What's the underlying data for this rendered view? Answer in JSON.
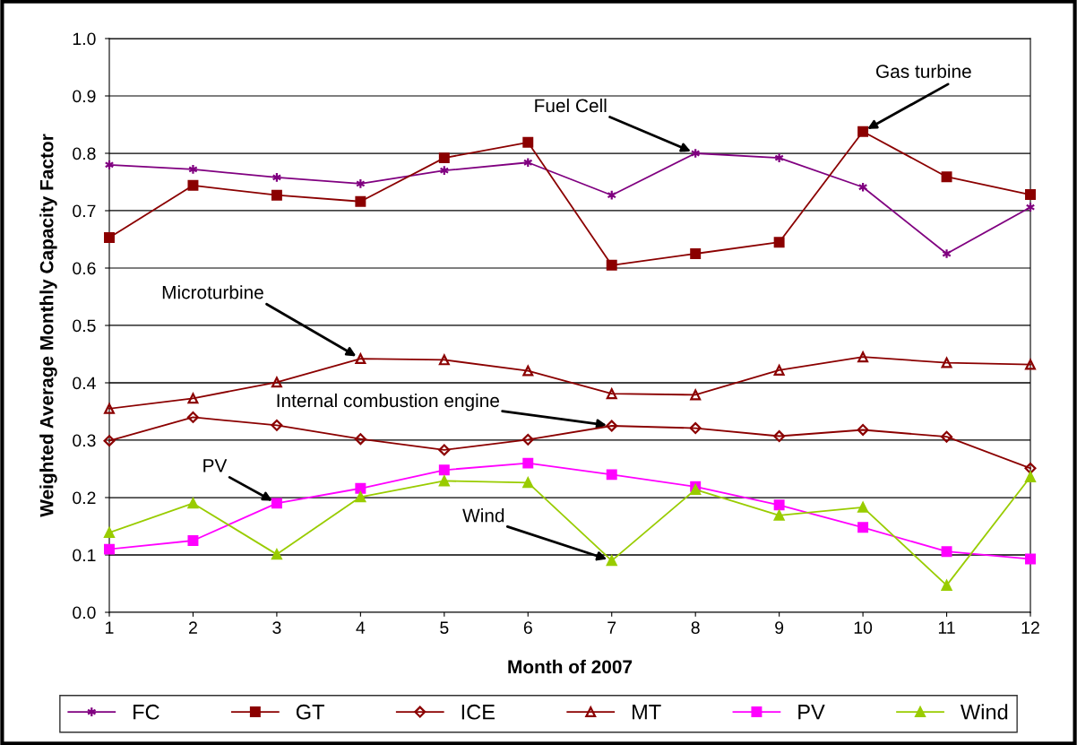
{
  "chart_data": {
    "type": "line",
    "xlabel": "Month of 2007",
    "ylabel": "Weighted Average Monthly Capacity Factor",
    "x": [
      1,
      2,
      3,
      4,
      5,
      6,
      7,
      8,
      9,
      10,
      11,
      12
    ],
    "series": [
      {
        "name": "FC",
        "color": "#800080",
        "marker": "cross",
        "values": [
          0.78,
          0.772,
          0.758,
          0.747,
          0.77,
          0.784,
          0.727,
          0.8,
          0.792,
          0.741,
          0.625,
          0.706
        ]
      },
      {
        "name": "GT",
        "color": "#8b0000",
        "marker": "square",
        "values": [
          0.653,
          0.744,
          0.727,
          0.716,
          0.792,
          0.819,
          0.605,
          0.625,
          0.645,
          0.838,
          0.759,
          0.728
        ]
      },
      {
        "name": "ICE",
        "color": "#8b0000",
        "marker": "diamond",
        "values": [
          0.299,
          0.34,
          0.326,
          0.302,
          0.283,
          0.301,
          0.325,
          0.321,
          0.307,
          0.318,
          0.306,
          0.251
        ]
      },
      {
        "name": "MT",
        "color": "#8b0000",
        "marker": "triangle",
        "values": [
          0.355,
          0.373,
          0.401,
          0.442,
          0.44,
          0.421,
          0.381,
          0.379,
          0.422,
          0.445,
          0.435,
          0.432
        ]
      },
      {
        "name": "PV",
        "color": "#ff00ff",
        "marker": "square",
        "values": [
          0.11,
          0.125,
          0.19,
          0.216,
          0.248,
          0.26,
          0.24,
          0.219,
          0.187,
          0.148,
          0.106,
          0.093
        ]
      },
      {
        "name": "Wind",
        "color": "#99cc00",
        "marker": "triangle",
        "values": [
          0.139,
          0.19,
          0.101,
          0.201,
          0.229,
          0.226,
          0.09,
          0.214,
          0.169,
          0.183,
          0.047,
          0.236
        ]
      }
    ],
    "annotations": [
      {
        "text": "Gas turbine",
        "x": 10,
        "y": 0.838
      },
      {
        "text": "Fuel Cell",
        "x": 8,
        "y": 0.8
      },
      {
        "text": "Microturbine",
        "x": 4,
        "y": 0.442
      },
      {
        "text": "Internal combustion engine",
        "x": 7,
        "y": 0.325
      },
      {
        "text": "PV",
        "x": 3,
        "y": 0.19
      },
      {
        "text": "Wind",
        "x": 7,
        "y": 0.09
      }
    ],
    "xlim": [
      1,
      12
    ],
    "xticks": [
      1,
      2,
      3,
      4,
      5,
      6,
      7,
      8,
      9,
      10,
      11,
      12
    ],
    "ylim": [
      0,
      1
    ],
    "yticks": [
      {
        "value": 0,
        "label": "0.0"
      },
      0.1,
      0.2,
      0.3,
      0.4,
      0.5,
      0.6,
      0.7,
      0.8,
      0.9,
      {
        "value": 1,
        "label": "1.0"
      }
    ],
    "grid": "y",
    "legend": "bottom",
    "line_style": "solid"
  }
}
